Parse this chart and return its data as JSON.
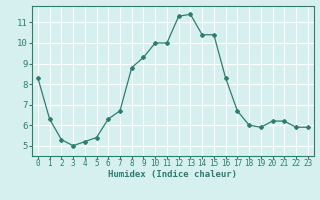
{
  "x": [
    0,
    1,
    2,
    3,
    4,
    5,
    6,
    7,
    8,
    9,
    10,
    11,
    12,
    13,
    14,
    15,
    16,
    17,
    18,
    19,
    20,
    21,
    22,
    23
  ],
  "y": [
    8.3,
    6.3,
    5.3,
    5.0,
    5.2,
    5.4,
    6.3,
    6.7,
    8.8,
    9.3,
    10.0,
    10.0,
    11.3,
    11.4,
    10.4,
    10.4,
    8.3,
    6.7,
    6.0,
    5.9,
    6.2,
    6.2,
    5.9,
    5.9
  ],
  "line_color": "#2e7d6e",
  "marker": "D",
  "marker_size": 2,
  "bg_color": "#d6f0f0",
  "grid_color": "#ffffff",
  "xlabel": "Humidex (Indice chaleur)",
  "ylim": [
    4.5,
    11.8
  ],
  "xlim": [
    -0.5,
    23.5
  ],
  "yticks": [
    5,
    6,
    7,
    8,
    9,
    10,
    11
  ],
  "xticks": [
    0,
    1,
    2,
    3,
    4,
    5,
    6,
    7,
    8,
    9,
    10,
    11,
    12,
    13,
    14,
    15,
    16,
    17,
    18,
    19,
    20,
    21,
    22,
    23
  ],
  "xtick_labels": [
    "0",
    "1",
    "2",
    "3",
    "4",
    "5",
    "6",
    "7",
    "8",
    "9",
    "10",
    "11",
    "12",
    "13",
    "14",
    "15",
    "16",
    "17",
    "18",
    "19",
    "20",
    "21",
    "22",
    "23"
  ],
  "tick_color": "#2e7d6e",
  "label_fontsize": 6.5,
  "tick_fontsize": 5.5,
  "linewidth": 0.9
}
